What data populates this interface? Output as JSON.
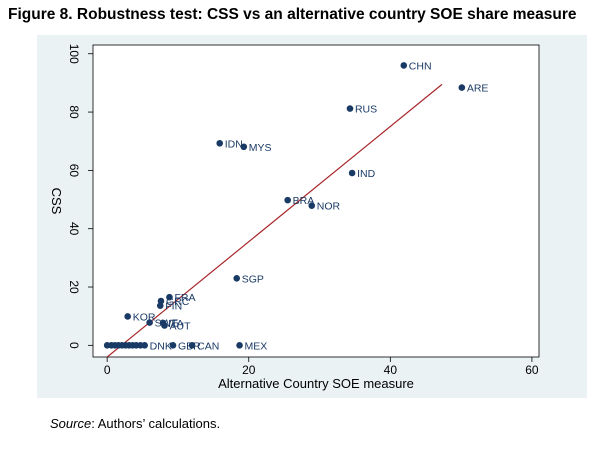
{
  "figure": {
    "title": "Figure 8. Robustness test: CSS vs an alternative country SOE share measure"
  },
  "source": {
    "label": "Source",
    "text": ": Authors’ calculations."
  },
  "chart_data": {
    "type": "scatter",
    "title": "",
    "xlabel": "Alternative Country SOE measure",
    "ylabel": "CSS",
    "xlim": [
      -2,
      61
    ],
    "ylim": [
      -4,
      103
    ],
    "xticks": [
      0,
      20,
      40,
      60
    ],
    "yticks": [
      0,
      20,
      40,
      60,
      80,
      100
    ],
    "grid": false,
    "point_color": "#1a3a66",
    "fit_line_color": "#a8262a",
    "fit_line": {
      "x": [
        0,
        47.3
      ],
      "y": [
        -4,
        89.5
      ]
    },
    "points": [
      {
        "label": "CHN",
        "x": 41.9,
        "y": 96.0
      },
      {
        "label": "ARE",
        "x": 50.1,
        "y": 88.4
      },
      {
        "label": "RUS",
        "x": 34.3,
        "y": 81.2
      },
      {
        "label": "IDN",
        "x": 15.9,
        "y": 69.3
      },
      {
        "label": "MYS",
        "x": 19.3,
        "y": 68.1
      },
      {
        "label": "IND",
        "x": 34.6,
        "y": 59.1
      },
      {
        "label": "BRA",
        "x": 25.5,
        "y": 49.8
      },
      {
        "label": "NOR",
        "x": 28.9,
        "y": 47.9
      },
      {
        "label": "SGP",
        "x": 18.3,
        "y": 23.0
      },
      {
        "label": "FRA",
        "x": 8.8,
        "y": 16.5
      },
      {
        "label": "GRC",
        "x": 7.6,
        "y": 15.2
      },
      {
        "label": "FIN",
        "x": 7.5,
        "y": 13.6
      },
      {
        "label": "KOR",
        "x": 2.9,
        "y": 9.9
      },
      {
        "label": "SWE",
        "x": 6.0,
        "y": 7.8
      },
      {
        "label": "ITA",
        "x": 7.9,
        "y": 7.7
      },
      {
        "label": "AUT",
        "x": 8.1,
        "y": 6.8
      },
      {
        "label": "GBR",
        "x": 9.3,
        "y": 0.0
      },
      {
        "label": "CAN",
        "x": 12.0,
        "y": 0.0
      },
      {
        "label": "MEX",
        "x": 18.7,
        "y": 0.0
      },
      {
        "label": "DNK",
        "x": 5.3,
        "y": 0.0
      },
      {
        "label": "",
        "x": 0.0,
        "y": 0.0
      },
      {
        "label": "",
        "x": 0.6,
        "y": 0.0
      },
      {
        "label": "",
        "x": 1.1,
        "y": 0.0
      },
      {
        "label": "",
        "x": 1.6,
        "y": 0.0
      },
      {
        "label": "",
        "x": 2.1,
        "y": 0.0
      },
      {
        "label": "",
        "x": 2.6,
        "y": 0.0
      },
      {
        "label": "",
        "x": 3.1,
        "y": 0.0
      },
      {
        "label": "",
        "x": 3.6,
        "y": 0.0
      },
      {
        "label": "",
        "x": 4.1,
        "y": 0.0
      },
      {
        "label": "",
        "x": 4.7,
        "y": 0.0
      }
    ]
  }
}
